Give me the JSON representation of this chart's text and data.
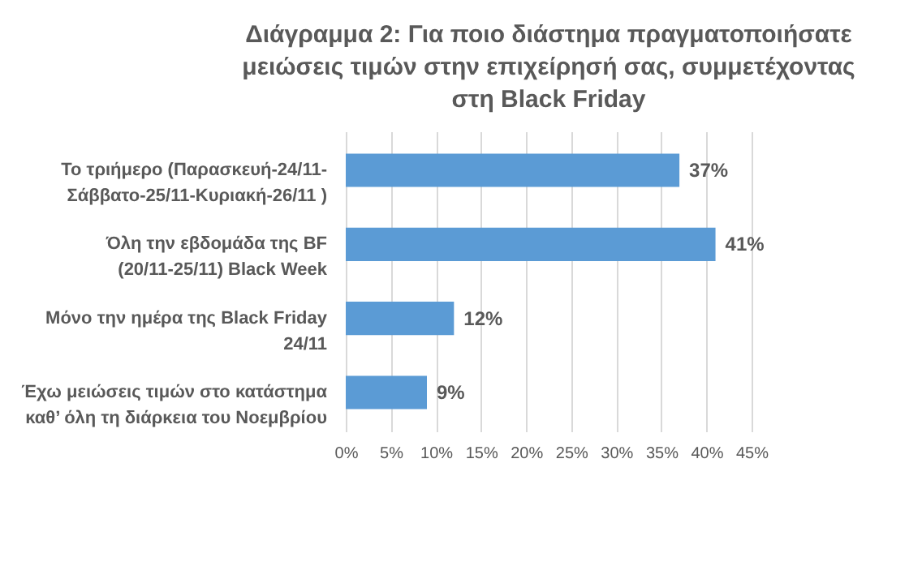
{
  "chart_data": {
    "type": "bar",
    "orientation": "horizontal",
    "title": "Διάγραμμα 2: Για ποιο διάστημα πραγματοποιήσατε μειώσεις τιμών στην επιχείρησή σας, συμμετέχοντας στη Black Friday",
    "categories": [
      "Το τριήμερο (Παρασκευή-24/11-Σάββατο-25/11-Κυριακή-26/11 )",
      "Όλη την εβδομάδα της BF (20/11-25/11) Black Week",
      "Μόνο την ημέρα της Black Friday 24/11",
      "Έχω μειώσεις τιμών στο κατάστημα καθ’ όλη τη διάρκεια του Νοεμβρίου"
    ],
    "values": [
      37,
      41,
      12,
      9
    ],
    "value_labels": [
      "37%",
      "41%",
      "12%",
      "9%"
    ],
    "color": "#5b9bd5",
    "xlim": [
      0,
      45
    ],
    "xticks": [
      {
        "value": 0,
        "label": "0%"
      },
      {
        "value": 5,
        "label": "5%"
      },
      {
        "value": 10,
        "label": "10%"
      },
      {
        "value": 15,
        "label": "15%"
      },
      {
        "value": 20,
        "label": "20%"
      },
      {
        "value": 25,
        "label": "25%"
      },
      {
        "value": 30,
        "label": "30%"
      },
      {
        "value": 35,
        "label": "35%"
      },
      {
        "value": 40,
        "label": "40%"
      },
      {
        "value": 45,
        "label": "45%"
      }
    ],
    "grid": "x"
  }
}
